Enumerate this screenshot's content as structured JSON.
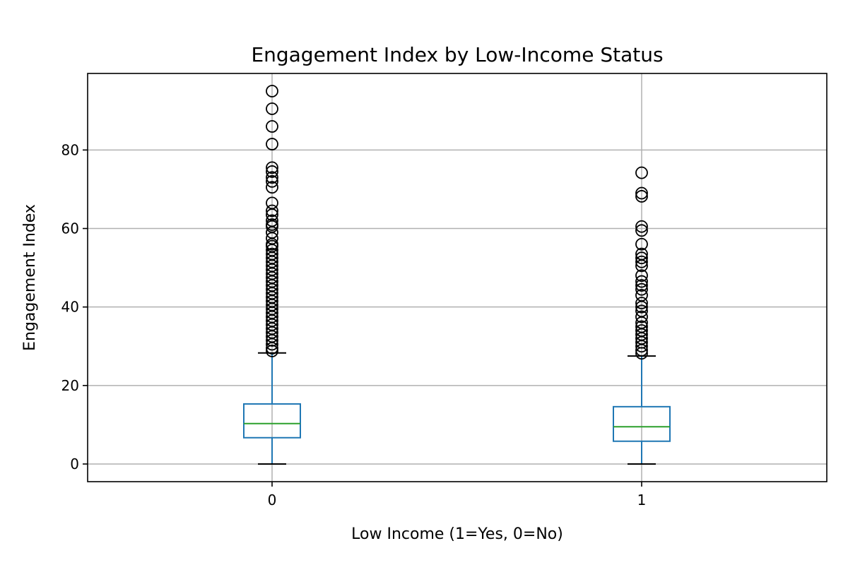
{
  "chart_data": {
    "type": "box",
    "title": "Engagement Index by Low-Income Status",
    "xlabel": "Low Income (1=Yes, 0=No)",
    "ylabel": "Engagement Index",
    "categories": [
      "0",
      "1"
    ],
    "ylim": [
      -4.5,
      99.5
    ],
    "yticks": [
      0,
      20,
      40,
      60,
      80
    ],
    "grid": true,
    "boxes": [
      {
        "category": "0",
        "whisker_low": 0,
        "q1": 6.7,
        "median": 10.3,
        "q3": 15.3,
        "whisker_high": 28.3,
        "outliers": [
          95.0,
          90.5,
          86.0,
          81.5,
          75.5,
          74.5,
          73.0,
          72.0,
          70.5,
          66.5,
          64.5,
          63.5,
          62.0,
          61.0,
          60.5,
          59.0,
          57.5,
          56.0,
          55.5,
          54.5,
          53.5,
          52.5,
          51.5,
          50.5,
          49.5,
          48.5,
          47.5,
          46.5,
          45.5,
          44.5,
          43.5,
          42.5,
          41.5,
          40.5,
          39.5,
          38.5,
          37.5,
          36.5,
          35.5,
          34.5,
          33.5,
          32.5,
          31.5,
          30.5,
          29.5,
          28.8
        ]
      },
      {
        "category": "1",
        "whisker_low": 0,
        "q1": 5.8,
        "median": 9.5,
        "q3": 14.6,
        "whisker_high": 27.5,
        "outliers": [
          74.2,
          69.0,
          68.2,
          60.5,
          59.5,
          56.0,
          53.5,
          52.5,
          51.5,
          50.5,
          48.0,
          46.5,
          45.5,
          44.5,
          43.0,
          41.0,
          40.0,
          39.0,
          37.5,
          36.0,
          35.0,
          34.0,
          33.0,
          32.0,
          31.0,
          30.0,
          29.0,
          28.2
        ]
      }
    ],
    "colors": {
      "box": "#1f77b4",
      "median": "#2ca02c",
      "whisker_cap": "#000000",
      "outlier": "#000000",
      "grid": "#b0b0b0"
    }
  }
}
